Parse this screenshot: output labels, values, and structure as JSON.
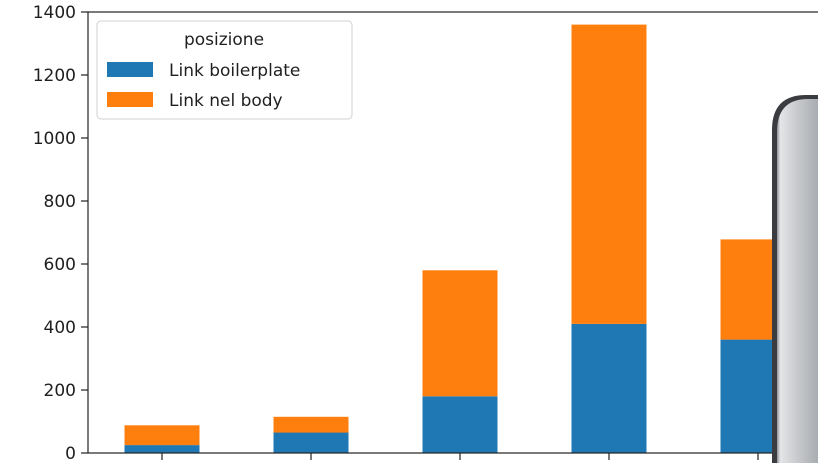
{
  "chart_data": {
    "type": "bar",
    "stacked": true,
    "categories": [
      "",
      "",
      "",
      "",
      ""
    ],
    "series": [
      {
        "name": "Link boilerplate",
        "color": "#1f77b4",
        "values": [
          25,
          65,
          180,
          410,
          360
        ]
      },
      {
        "name": "Link nel body",
        "color": "#ff7f0e",
        "values": [
          63,
          50,
          400,
          950,
          318
        ]
      }
    ],
    "title": "",
    "xlabel": "",
    "ylabel": "",
    "ylim": [
      0,
      1400
    ],
    "yticks": [
      0,
      200,
      400,
      600,
      800,
      1000,
      1200,
      1400
    ],
    "grid": false,
    "legend": {
      "title": "posizione",
      "placement": "top-left"
    }
  },
  "overlay": {
    "description_icon": "gray-rounded-panel",
    "color": "#b8babd"
  }
}
